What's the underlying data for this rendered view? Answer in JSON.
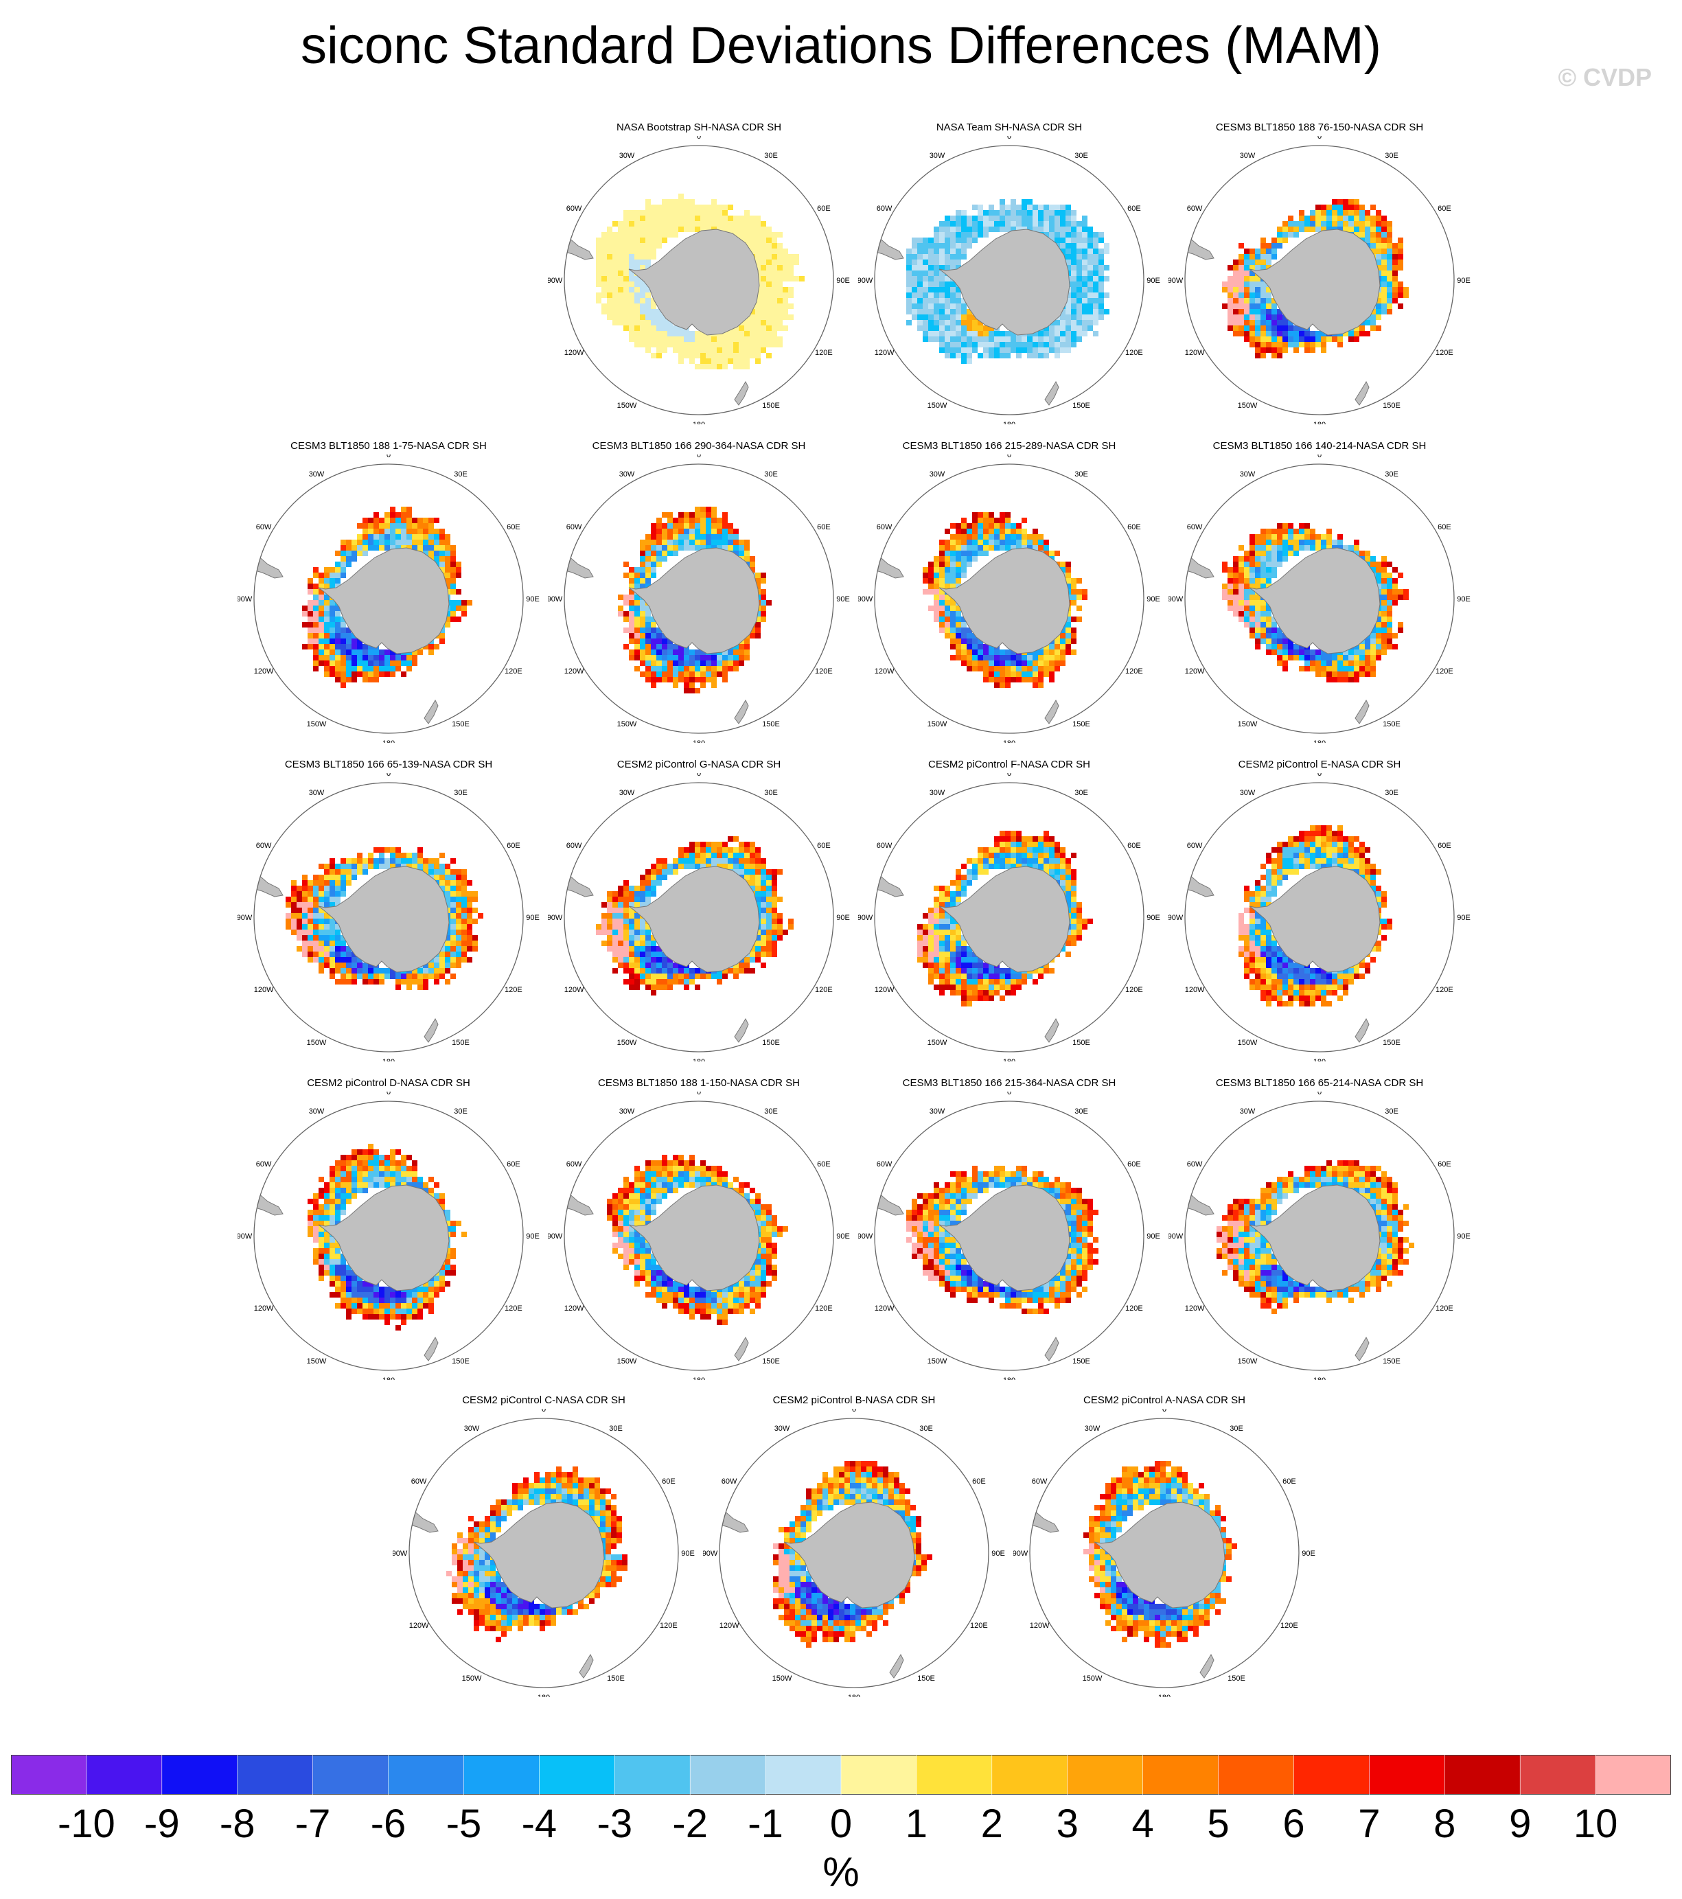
{
  "page": {
    "title": "siconc Standard Deviations Differences (MAM)",
    "watermark": "© CVDP"
  },
  "chart_data": {
    "type": "heatmap",
    "variable": "siconc",
    "season": "MAM",
    "projection": "south polar stereographic",
    "longitude_labels": [
      "0",
      "30E",
      "60E",
      "90E",
      "120E",
      "150E",
      "180",
      "150W",
      "120W",
      "90W",
      "60W",
      "30W"
    ],
    "panels": [
      {
        "title": "NASA Bootstrap SH-NASA CDR SH",
        "pattern": "obs_boot"
      },
      {
        "title": "NASA Team SH-NASA CDR SH",
        "pattern": "obs_team"
      },
      {
        "title": "CESM3 BLT1850 188 76-150-NASA CDR SH",
        "pattern": "model"
      },
      {
        "title": "CESM3 BLT1850 188 1-75-NASA CDR SH",
        "pattern": "model"
      },
      {
        "title": "CESM3 BLT1850 166 290-364-NASA CDR SH",
        "pattern": "model"
      },
      {
        "title": "CESM3 BLT1850 166 215-289-NASA CDR SH",
        "pattern": "model"
      },
      {
        "title": "CESM3 BLT1850 166 140-214-NASA CDR SH",
        "pattern": "model"
      },
      {
        "title": "CESM3 BLT1850 166 65-139-NASA CDR SH",
        "pattern": "model"
      },
      {
        "title": "CESM2 piControl G-NASA CDR SH",
        "pattern": "model"
      },
      {
        "title": "CESM2 piControl F-NASA CDR SH",
        "pattern": "model"
      },
      {
        "title": "CESM2 piControl E-NASA CDR SH",
        "pattern": "model"
      },
      {
        "title": "CESM2 piControl D-NASA CDR SH",
        "pattern": "model"
      },
      {
        "title": "CESM3 BLT1850 188 1-150-NASA CDR SH",
        "pattern": "model"
      },
      {
        "title": "CESM3 BLT1850 166 215-364-NASA CDR SH",
        "pattern": "model"
      },
      {
        "title": "CESM3 BLT1850 166 65-214-NASA CDR SH",
        "pattern": "model"
      },
      {
        "title": "CESM2 piControl C-NASA CDR SH",
        "pattern": "model"
      },
      {
        "title": "CESM2 piControl B-NASA CDR SH",
        "pattern": "model"
      },
      {
        "title": "CESM2 piControl A-NASA CDR SH",
        "pattern": "model"
      }
    ],
    "colorbar": {
      "units": "%",
      "tick_labels": [
        "-10",
        "-9",
        "-8",
        "-7",
        "-6",
        "-5",
        "-4",
        "-3",
        "-2",
        "-1",
        "0",
        "1",
        "2",
        "3",
        "4",
        "5",
        "6",
        "7",
        "8",
        "9",
        "10"
      ],
      "colors": [
        "#8a2be8",
        "#4a14f0",
        "#1010f6",
        "#2a4be0",
        "#3670e4",
        "#2a88ee",
        "#17a2f8",
        "#08c0f8",
        "#50c4f0",
        "#98d0ec",
        "#bfe2f4",
        "#fff59c",
        "#ffe23a",
        "#ffc41a",
        "#ffa40a",
        "#ff8200",
        "#ff5c00",
        "#ff2600",
        "#f00000",
        "#c80000",
        "#dc4040",
        "#ffb0b0"
      ]
    }
  }
}
